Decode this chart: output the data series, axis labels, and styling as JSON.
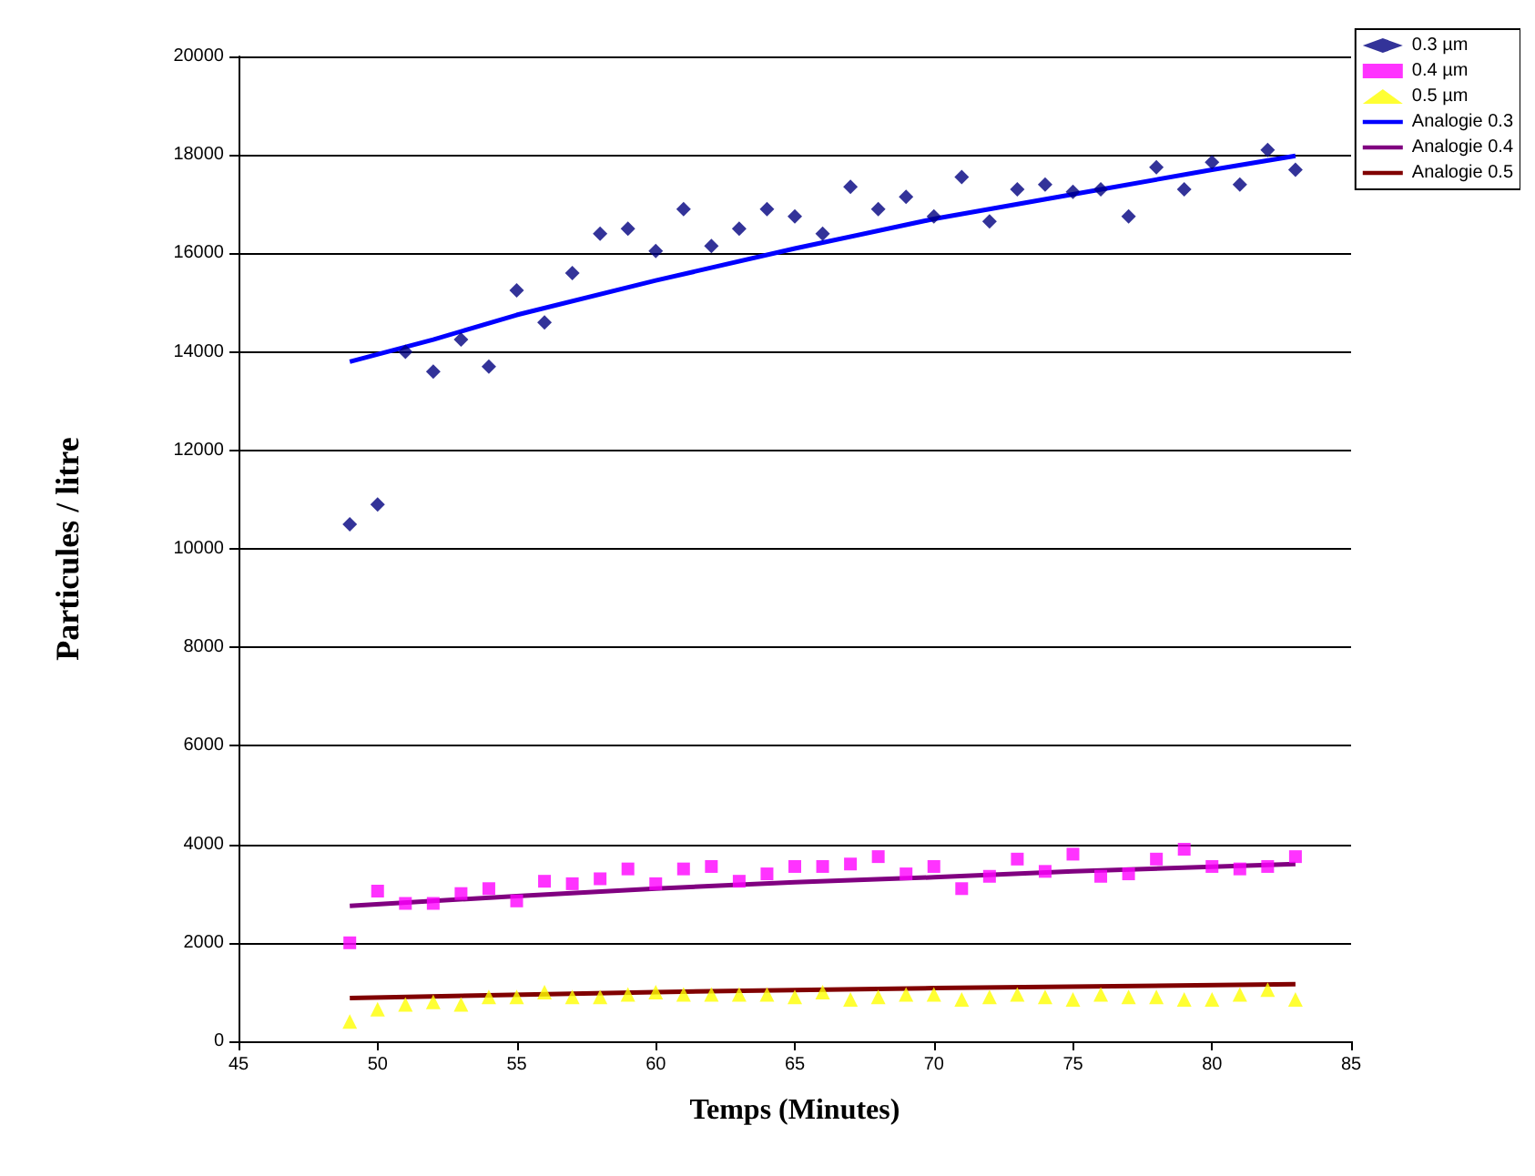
{
  "chart_data": {
    "type": "scatter",
    "xlabel": "Temps (Minutes)",
    "ylabel": "Particules / litre",
    "xlim": [
      45,
      85
    ],
    "xticks": [
      45,
      50,
      55,
      60,
      65,
      70,
      75,
      80,
      85
    ],
    "ylim": [
      0,
      20000
    ],
    "yticks": [
      0,
      2000,
      4000,
      6000,
      8000,
      10000,
      12000,
      14000,
      16000,
      18000,
      20000
    ],
    "grid": "y",
    "legend": "top right",
    "x": [
      49,
      50,
      51,
      52,
      53,
      54,
      55,
      56,
      57,
      58,
      59,
      60,
      61,
      62,
      63,
      64,
      65,
      66,
      67,
      68,
      69,
      70,
      71,
      72,
      73,
      74,
      75,
      76,
      77,
      78,
      79,
      80,
      81,
      82,
      83
    ],
    "series": [
      {
        "name": "0.3 µm",
        "marker": "diamond",
        "color": "#000080",
        "values": [
          10500,
          10900,
          14000,
          13600,
          14250,
          13700,
          15250,
          14600,
          15600,
          16400,
          16500,
          16050,
          16900,
          16150,
          16500,
          16900,
          16750,
          16400,
          17350,
          16900,
          17150,
          16750,
          17550,
          16650,
          17300,
          17400,
          17250,
          17300,
          16750,
          17750,
          17300,
          17850,
          17400,
          18100,
          17700
        ]
      },
      {
        "name": "0.4 µm",
        "marker": "square",
        "color": "#ff00ff",
        "values": [
          2000,
          3050,
          2800,
          2800,
          3000,
          3100,
          2850,
          3250,
          3200,
          3300,
          3500,
          3200,
          3500,
          3550,
          3250,
          3400,
          3550,
          3550,
          3600,
          3750,
          3400,
          3550,
          3100,
          3350,
          3700,
          3450,
          3800,
          3350,
          3400,
          3700,
          3900,
          3550,
          3500,
          3550,
          3750
        ]
      },
      {
        "name": "0.5 µm",
        "marker": "triangle",
        "color": "#ffff00",
        "values": [
          400,
          650,
          750,
          800,
          750,
          900,
          900,
          1000,
          900,
          900,
          950,
          1000,
          950,
          950,
          950,
          950,
          900,
          1000,
          850,
          900,
          950,
          950,
          850,
          900,
          950,
          900,
          850,
          950,
          900,
          900,
          850,
          850,
          950,
          1050,
          850
        ]
      },
      {
        "name": "Analogie 0.3",
        "type": "line",
        "marker": "none",
        "color": "#0000ff",
        "x": [
          49,
          52,
          55,
          60,
          65,
          70,
          75,
          80,
          83
        ],
        "values": [
          13800,
          14250,
          14750,
          15450,
          16100,
          16700,
          17200,
          17700,
          17980
        ]
      },
      {
        "name": "Analogie 0.4",
        "type": "line",
        "marker": "none",
        "color": "#800080",
        "x": [
          49,
          55,
          60,
          65,
          70,
          75,
          83
        ],
        "values": [
          2750,
          2950,
          3100,
          3230,
          3330,
          3450,
          3600
        ]
      },
      {
        "name": "Analogie 0.5",
        "type": "line",
        "marker": "none",
        "color": "#800000",
        "x": [
          49,
          60,
          70,
          83
        ],
        "values": [
          880,
          1000,
          1080,
          1160
        ]
      }
    ]
  }
}
